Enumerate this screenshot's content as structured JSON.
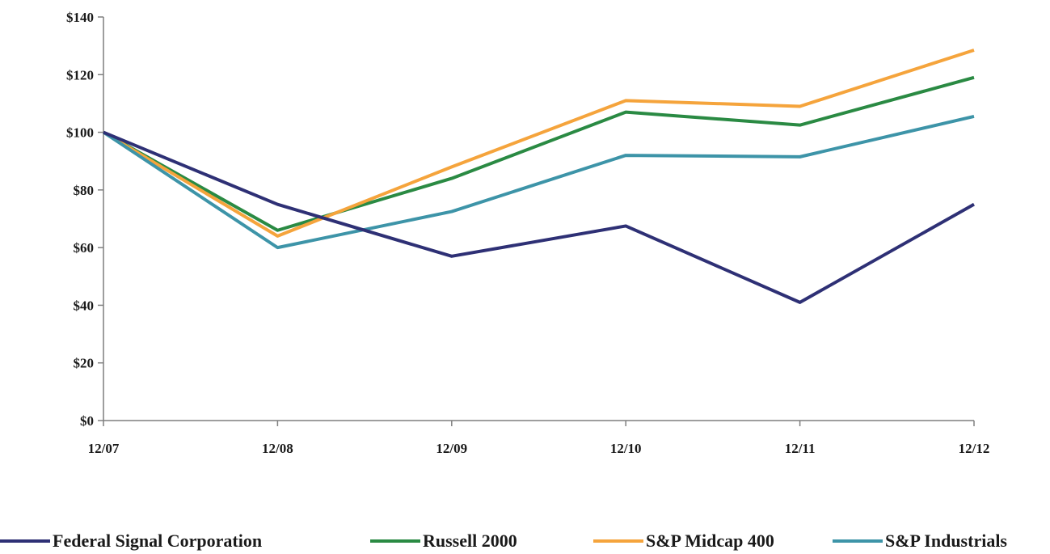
{
  "chart_data": {
    "type": "line",
    "categories": [
      "12/07",
      "12/08",
      "12/09",
      "12/10",
      "12/11",
      "12/12"
    ],
    "ylim": [
      0,
      140
    ],
    "yticks": [
      0,
      20,
      40,
      60,
      80,
      100,
      120,
      140
    ],
    "ytick_labels": [
      "$0",
      "$20",
      "$40",
      "$60",
      "$80",
      "$100",
      "$120",
      "$140"
    ],
    "grid": false,
    "legend": "bottom",
    "series": [
      {
        "name": "Federal Signal Corporation",
        "color": "#2e3075",
        "values": [
          100,
          75,
          57,
          67.5,
          41,
          75
        ]
      },
      {
        "name": "Russell 2000",
        "color": "#2a8a43",
        "values": [
          100,
          66,
          84,
          107,
          102.5,
          119
        ]
      },
      {
        "name": "S&P Midcap 400",
        "color": "#f5a43c",
        "values": [
          100,
          64,
          88,
          111,
          109,
          128.5
        ]
      },
      {
        "name": "S&P Industrials",
        "color": "#3d94a8",
        "values": [
          100,
          60,
          72.5,
          92,
          91.5,
          105.5
        ]
      }
    ]
  }
}
